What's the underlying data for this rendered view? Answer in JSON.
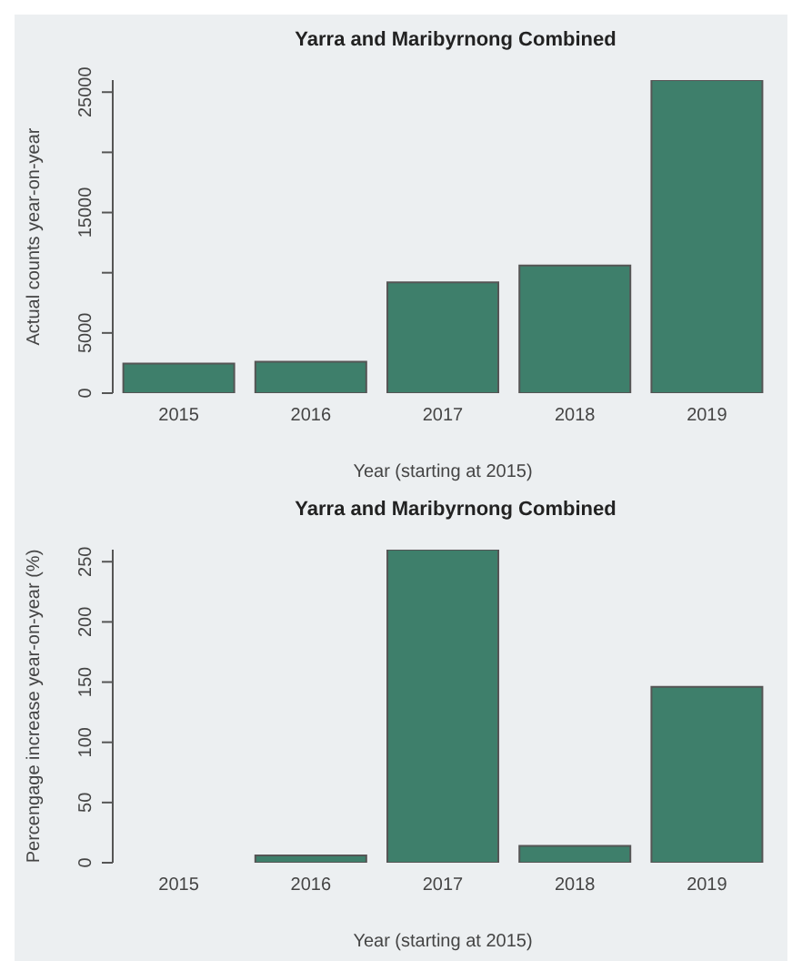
{
  "chart_data": [
    {
      "type": "bar",
      "title": "Yarra and Maribyrnong Combined",
      "xlabel": "Year (starting at 2015)",
      "ylabel": "Actual counts year-on-year",
      "categories": [
        "2015",
        "2016",
        "2017",
        "2018",
        "2019"
      ],
      "values": [
        2450,
        2600,
        9200,
        10600,
        26000
      ],
      "color": "#3e7f6b",
      "ylim": [
        0,
        26000
      ],
      "yticks": [
        0,
        5000,
        {
          "value": 10000,
          "label": null
        },
        15000,
        {
          "value": 20000,
          "label": null
        },
        25000
      ],
      "grid": false
    },
    {
      "type": "bar",
      "title": "Yarra and Maribyrnong Combined",
      "xlabel": "Year (starting at 2015)",
      "ylabel": "Percengage increase year-on-year (%)",
      "categories": [
        "2015",
        "2016",
        "2017",
        "2018",
        "2019"
      ],
      "values": [
        0,
        6,
        260,
        14,
        146
      ],
      "color": "#3e7f6b",
      "ylim": [
        0,
        260
      ],
      "yticks": [
        0,
        50,
        100,
        150,
        200,
        250
      ],
      "grid": false
    }
  ]
}
